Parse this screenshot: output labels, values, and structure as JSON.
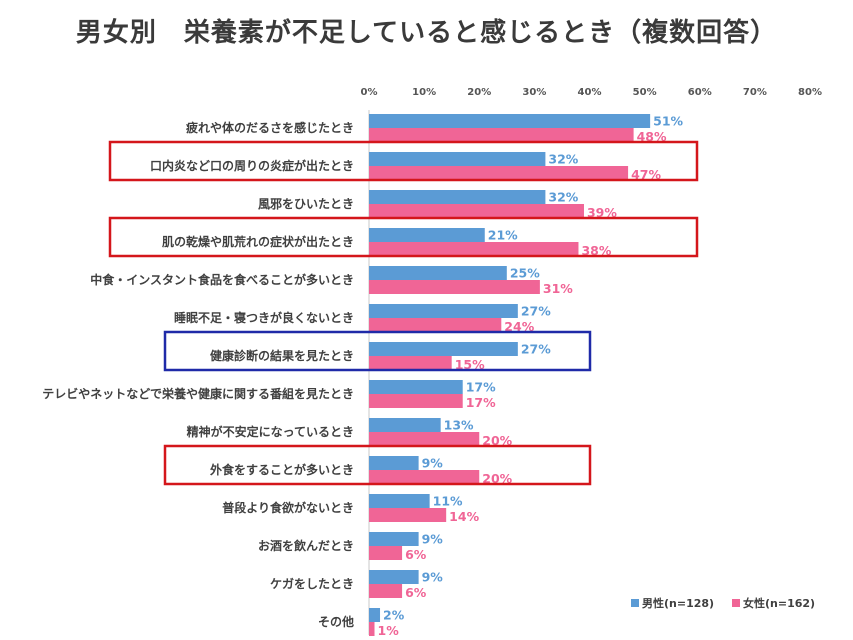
{
  "title": "男女別　栄養素が不足していると感じるとき（複数回答）",
  "colors": {
    "male": "#5b9bd5",
    "female": "#f06596",
    "highlight_red": "#d4161b",
    "highlight_blue": "#1f2aa8"
  },
  "chart_data": {
    "type": "bar",
    "orientation": "horizontal",
    "title": "男女別　栄養素が不足していると感じるとき（複数回答）",
    "xlim": [
      0,
      80
    ],
    "x_ticks": [
      "0%",
      "10%",
      "20%",
      "30%",
      "40%",
      "50%",
      "60%",
      "70%",
      "80%"
    ],
    "categories": [
      "疲れや体のだるさを感じたとき",
      "口内炎など口の周りの炎症が出たとき",
      "風邪をひいたとき",
      "肌の乾燥や肌荒れの症状が出たとき",
      "中食・インスタント食品を食べることが多いとき",
      "睡眠不足・寝つきが良くないとき",
      "健康診断の結果を見たとき",
      "テレビやネットなどで栄養や健康に関する番組を見たとき",
      "精神が不安定になっているとき",
      "外食をすることが多いとき",
      "普段より食欲がないとき",
      "お酒を飲んだとき",
      "ケガをしたとき",
      "その他"
    ],
    "series": [
      {
        "name": "男性(n=128)",
        "values": [
          51,
          32,
          32,
          21,
          25,
          27,
          27,
          17,
          13,
          9,
          11,
          9,
          9,
          2
        ],
        "labels": [
          "51%",
          "32%",
          "32%",
          "21%",
          "25%",
          "27%",
          "27%",
          "17%",
          "13%",
          "9%",
          "11%",
          "9%",
          "9%",
          "2%"
        ]
      },
      {
        "name": "女性(n=162)",
        "values": [
          48,
          47,
          39,
          38,
          31,
          24,
          15,
          17,
          20,
          20,
          14,
          6,
          6,
          1
        ],
        "labels": [
          "48%",
          "47%",
          "39%",
          "38%",
          "31%",
          "24%",
          "15%",
          "17%",
          "20%",
          "20%",
          "14%",
          "6%",
          "6%",
          "1%"
        ]
      }
    ],
    "legend": "bottom-right",
    "highlights": [
      {
        "category_index": 1,
        "color": "red"
      },
      {
        "category_index": 3,
        "color": "red"
      },
      {
        "category_index": 6,
        "color": "blue"
      },
      {
        "category_index": 9,
        "color": "red"
      }
    ]
  }
}
